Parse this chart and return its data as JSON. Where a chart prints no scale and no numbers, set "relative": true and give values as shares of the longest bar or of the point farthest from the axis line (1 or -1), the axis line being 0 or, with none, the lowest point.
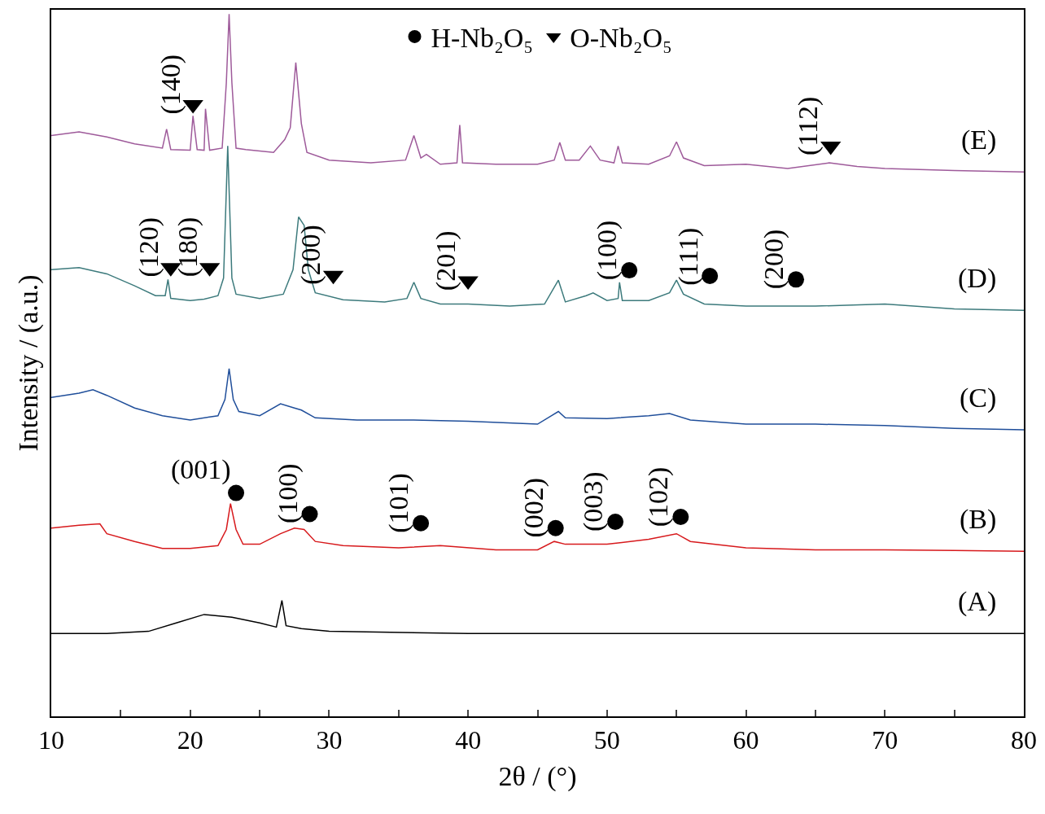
{
  "chart_data": {
    "type": "line",
    "relative": true,
    "xlabel": "2θ / (°)",
    "ylabel": "Intensity / (a.u.)",
    "xlim": [
      10,
      80
    ],
    "xticks": [
      10,
      {
        "value": 15,
        "label": null
      },
      20,
      {
        "value": 25,
        "label": null
      },
      30,
      {
        "value": 35,
        "label": null
      },
      40,
      {
        "value": 45,
        "label": null
      },
      50,
      {
        "value": 55,
        "label": null
      },
      60,
      {
        "value": 65,
        "label": null
      },
      70,
      {
        "value": 75,
        "label": null
      },
      80
    ],
    "legend": "top",
    "series": [
      {
        "name": "(E)",
        "color": "#9e5a9a",
        "x": [
          10,
          12,
          14,
          16,
          18,
          18.3,
          18.6,
          20,
          20.2,
          20.5,
          21,
          21.1,
          21.4,
          22.3,
          22.6,
          22.8,
          23.0,
          23.3,
          24,
          26,
          26.8,
          27.2,
          27.6,
          28.0,
          28.4,
          30,
          33,
          35.5,
          36.1,
          36.6,
          37,
          38,
          39.2,
          39.4,
          39.6,
          42,
          45,
          46.2,
          46.6,
          47.0,
          48,
          48.8,
          49.5,
          50.5,
          50.8,
          51.1,
          53,
          54.5,
          55,
          55.5,
          57,
          60,
          63,
          66,
          68,
          70,
          75,
          80
        ],
        "values": [
          0.827,
          0.832,
          0.825,
          0.815,
          0.809,
          0.836,
          0.807,
          0.806,
          0.855,
          0.807,
          0.806,
          0.865,
          0.806,
          0.809,
          0.902,
          1.0,
          0.902,
          0.809,
          0.807,
          0.803,
          0.821,
          0.838,
          0.931,
          0.844,
          0.803,
          0.792,
          0.788,
          0.792,
          0.827,
          0.795,
          0.8,
          0.786,
          0.788,
          0.842,
          0.788,
          0.786,
          0.786,
          0.792,
          0.817,
          0.792,
          0.792,
          0.812,
          0.792,
          0.788,
          0.812,
          0.788,
          0.786,
          0.798,
          0.818,
          0.795,
          0.784,
          0.786,
          0.78,
          0.788,
          0.783,
          0.78,
          0.777,
          0.775
        ]
      },
      {
        "name": "(D)",
        "color": "#3c7a7c",
        "x": [
          10,
          12,
          14,
          16,
          17.5,
          18.2,
          18.4,
          18.6,
          20,
          21,
          22,
          22.4,
          22.7,
          23.0,
          23.3,
          25,
          26.7,
          27.4,
          27.8,
          28.2,
          28.5,
          29,
          31,
          34,
          35.6,
          36.1,
          36.6,
          38,
          40,
          43,
          45.5,
          46.5,
          47.0,
          48.5,
          49,
          50,
          50.8,
          50.9,
          51.1,
          53,
          54.5,
          55,
          55.5,
          57,
          60,
          65,
          70,
          75,
          80
        ],
        "values": [
          0.636,
          0.639,
          0.63,
          0.613,
          0.599,
          0.599,
          0.622,
          0.595,
          0.592,
          0.594,
          0.599,
          0.624,
          0.812,
          0.624,
          0.601,
          0.595,
          0.601,
          0.636,
          0.711,
          0.699,
          0.636,
          0.603,
          0.593,
          0.59,
          0.595,
          0.618,
          0.595,
          0.587,
          0.587,
          0.584,
          0.587,
          0.621,
          0.59,
          0.599,
          0.603,
          0.592,
          0.595,
          0.618,
          0.592,
          0.592,
          0.603,
          0.621,
          0.601,
          0.587,
          0.584,
          0.584,
          0.587,
          0.58,
          0.578
        ]
      },
      {
        "name": "(C)",
        "color": "#1f4e9a",
        "x": [
          10,
          12,
          13,
          14,
          16,
          18,
          20,
          22,
          22.5,
          22.8,
          23.1,
          23.5,
          25,
          26.5,
          27.5,
          28,
          29,
          32,
          36,
          40,
          45,
          46.5,
          47,
          50,
          53,
          54.5,
          56,
          60,
          65,
          70,
          75,
          80
        ],
        "values": [
          0.454,
          0.46,
          0.465,
          0.457,
          0.439,
          0.428,
          0.422,
          0.428,
          0.451,
          0.495,
          0.451,
          0.434,
          0.428,
          0.445,
          0.439,
          0.436,
          0.425,
          0.422,
          0.422,
          0.42,
          0.416,
          0.434,
          0.425,
          0.424,
          0.428,
          0.431,
          0.422,
          0.416,
          0.416,
          0.414,
          0.41,
          0.408
        ]
      },
      {
        "name": "(B)",
        "color": "#d7191c",
        "x": [
          10,
          12,
          13.5,
          14,
          16,
          18,
          20,
          22,
          22.6,
          22.9,
          23.3,
          23.8,
          25,
          26.5,
          27.5,
          28.2,
          29,
          31,
          35,
          38,
          42,
          45,
          46.2,
          47,
          50,
          53,
          55,
          56,
          60,
          65,
          70,
          75,
          80
        ],
        "values": [
          0.268,
          0.272,
          0.274,
          0.26,
          0.249,
          0.239,
          0.239,
          0.243,
          0.266,
          0.303,
          0.266,
          0.245,
          0.245,
          0.26,
          0.268,
          0.266,
          0.249,
          0.243,
          0.24,
          0.243,
          0.237,
          0.237,
          0.249,
          0.245,
          0.245,
          0.252,
          0.26,
          0.249,
          0.24,
          0.237,
          0.237,
          0.236,
          0.235
        ]
      },
      {
        "name": "(A)",
        "color": "#000000",
        "x": [
          10,
          14,
          17,
          19,
          21,
          23,
          25,
          26.2,
          26.6,
          26.9,
          28,
          30,
          40,
          50,
          60,
          70,
          80
        ],
        "values": [
          0.118,
          0.118,
          0.121,
          0.133,
          0.145,
          0.141,
          0.133,
          0.127,
          0.165,
          0.129,
          0.125,
          0.121,
          0.118,
          0.118,
          0.118,
          0.118,
          0.118
        ]
      },
      {
        "name": "H-Nb₂O₅",
        "type": "scatter",
        "marker": "circle",
        "color": "#000000",
        "x": [
          23.3,
          28.6,
          36.6,
          46.3,
          50.6,
          55.3,
          51.6,
          57.4,
          63.6
        ],
        "values": [
          0.318,
          0.288,
          0.275,
          0.268,
          0.277,
          0.284,
          0.635,
          0.627,
          0.622
        ]
      },
      {
        "name": "O-Nb₂O₅",
        "type": "scatter",
        "marker": "triangle",
        "color": "#000000",
        "x": [
          20.2,
          18.6,
          21.4,
          30.3,
          40.0,
          66.1
        ],
        "values": [
          0.871,
          0.639,
          0.639,
          0.628,
          0.62,
          0.812
        ]
      }
    ],
    "annotations": [
      {
        "text": "(001)",
        "x": 23.3,
        "y": 0.318
      },
      {
        "text": "(100)",
        "x": 28.6,
        "y": 0.288
      },
      {
        "text": "(101)",
        "x": 36.6,
        "y": 0.275
      },
      {
        "text": "(002)",
        "x": 46.3,
        "y": 0.268
      },
      {
        "text": "(003)",
        "x": 50.6,
        "y": 0.277
      },
      {
        "text": "(102)",
        "x": 55.3,
        "y": 0.284
      },
      {
        "text": "(100)",
        "x": 51.6,
        "y": 0.635
      },
      {
        "text": "(111)",
        "x": 57.4,
        "y": 0.627
      },
      {
        "text": "(200)",
        "x": 63.6,
        "y": 0.622
      },
      {
        "text": "(140)",
        "x": 20.2,
        "y": 0.871
      },
      {
        "text": "(120)",
        "x": 18.6,
        "y": 0.639
      },
      {
        "text": "(180)",
        "x": 21.4,
        "y": 0.639
      },
      {
        "text": "(200)",
        "x": 30.3,
        "y": 0.628
      },
      {
        "text": "(201)",
        "x": 40.0,
        "y": 0.62
      },
      {
        "text": "(112)",
        "x": 66.1,
        "y": 0.812
      }
    ]
  }
}
